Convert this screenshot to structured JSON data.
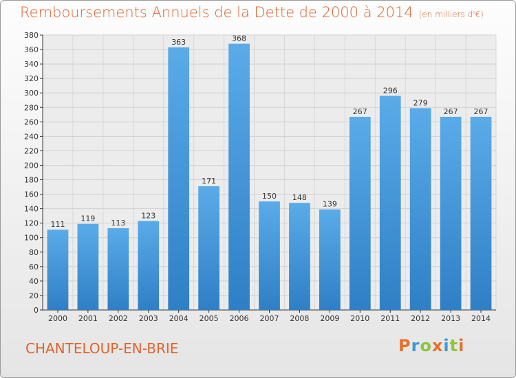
{
  "chart_data": {
    "type": "bar",
    "title": "Remboursements Annuels de la Dette de 2000 à 2014",
    "subtitle": "(en milliers d'€)",
    "categories": [
      "2000",
      "2001",
      "2002",
      "2003",
      "2004",
      "2005",
      "2006",
      "2007",
      "2008",
      "2009",
      "2010",
      "2011",
      "2012",
      "2013",
      "2014"
    ],
    "values": [
      111,
      119,
      113,
      123,
      363,
      171,
      368,
      150,
      148,
      139,
      267,
      296,
      279,
      267,
      267
    ],
    "ylim": [
      0,
      380
    ],
    "yticks": [
      0,
      20,
      40,
      60,
      80,
      100,
      120,
      140,
      160,
      180,
      200,
      220,
      240,
      260,
      280,
      300,
      320,
      340,
      360,
      380
    ],
    "grid": true,
    "bar_color": "#5aabe8",
    "bar_color_dark": "#2f7fc6"
  },
  "footer": {
    "town": "CHANTELOUP-EN-BRIE",
    "logo": "Proxiti"
  },
  "colors": {
    "title": "#e0632d",
    "logo": [
      "#e8702a",
      "#3d9ad6",
      "#8cc63f",
      "#e8702a",
      "#3d9ad6",
      "#8cc63f",
      "#e8702a"
    ]
  }
}
